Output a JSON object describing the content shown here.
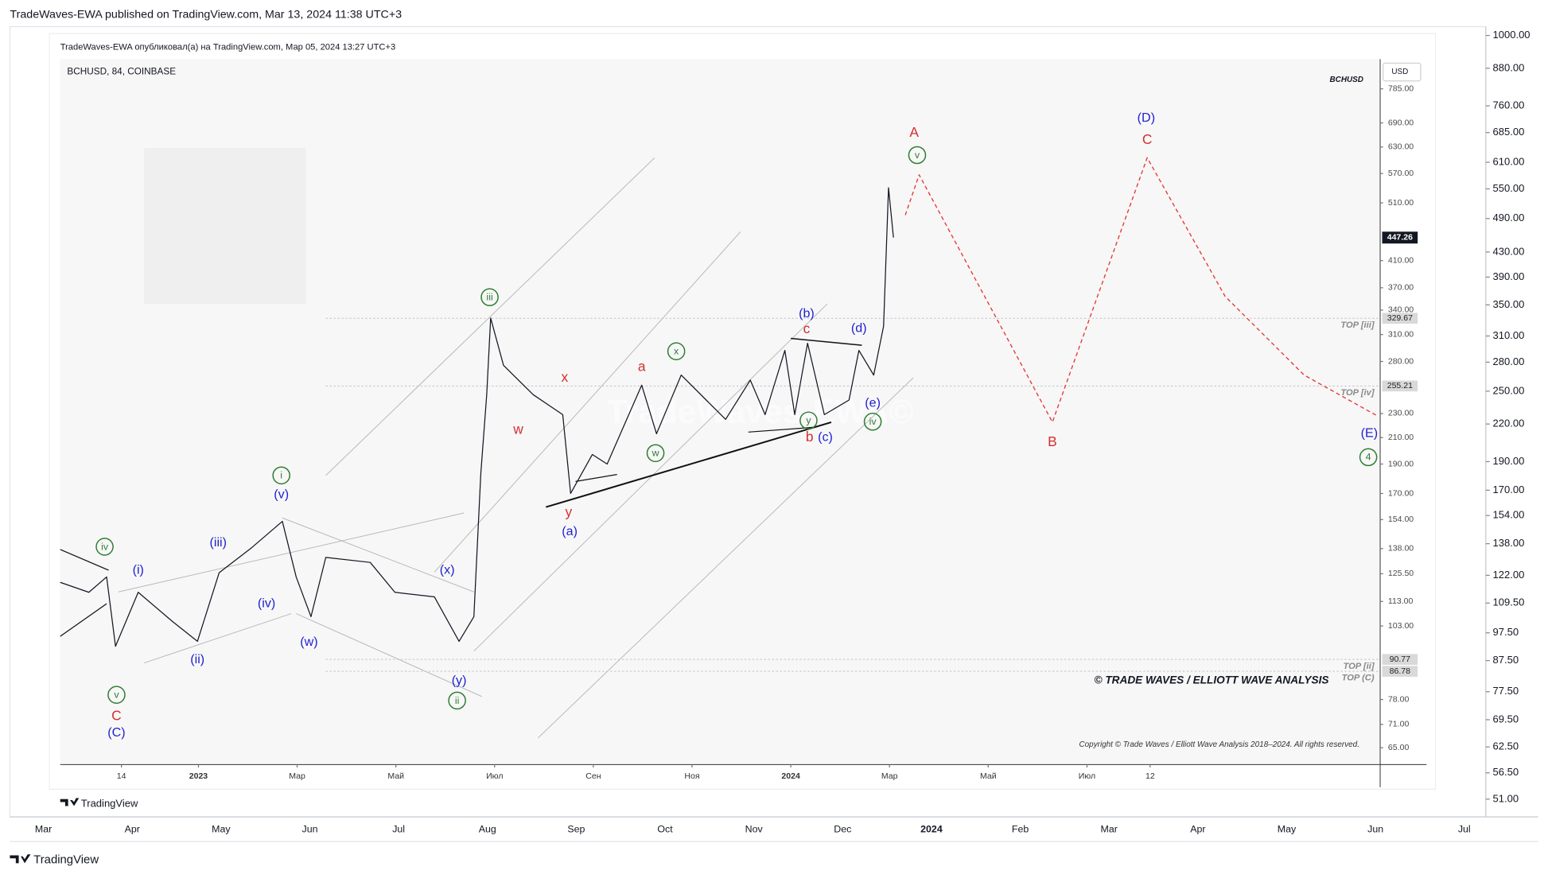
{
  "header": "TradeWaves-EWA published on TradingView.com, Mar 13, 2024 11:38 UTC+3",
  "footer_brand": "TradingView",
  "chart_data": {
    "type": "line",
    "inner_header": "TradeWaves-EWA опубликовал(а) на TradingView.com, Мар 05, 2024 13:27 UTC+3",
    "title": "BCHUSD, 84, COINBASE",
    "symbol": "BCHUSD",
    "currency": "USD",
    "watermark": "TradeWaves-EWA©",
    "copyright_banner": "© TRADE WAVES / ELLIOTT WAVE ANALYSIS",
    "copyright_note": "Copyright © Trade Waves / Elliott Wave Analysis 2018–2024. All rights reserved.",
    "brand": "TradingView",
    "y_scale": "log",
    "ylim": [
      47.6,
      1031
    ],
    "yticks": [
      {
        "value": 1000,
        "label": "1000.00"
      },
      {
        "value": 880,
        "label": "880.00"
      },
      {
        "value": 760,
        "label": "760.00"
      },
      {
        "value": 685,
        "label": "685.00"
      },
      {
        "value": 610,
        "label": "610.00"
      },
      {
        "value": 550,
        "label": "550.00"
      },
      {
        "value": 490,
        "label": "490.00"
      },
      {
        "value": 430,
        "label": "430.00"
      },
      {
        "value": 390,
        "label": "390.00"
      },
      {
        "value": 350,
        "label": "350.00"
      },
      {
        "value": 310,
        "label": "310.00"
      },
      {
        "value": 280,
        "label": "280.00"
      },
      {
        "value": 250,
        "label": "250.00"
      },
      {
        "value": 220,
        "label": "220.00"
      },
      {
        "value": 190,
        "label": "190.00"
      },
      {
        "value": 170,
        "label": "170.00"
      },
      {
        "value": 154,
        "label": "154.00"
      },
      {
        "value": 138,
        "label": "138.00"
      },
      {
        "value": 122,
        "label": "122.00"
      },
      {
        "value": 109.5,
        "label": "109.50"
      },
      {
        "value": 97.5,
        "label": "97.50"
      },
      {
        "value": 87.5,
        "label": "87.50"
      },
      {
        "value": 77.5,
        "label": "77.50"
      },
      {
        "value": 69.5,
        "label": "69.50"
      },
      {
        "value": 62.5,
        "label": "62.50"
      },
      {
        "value": 56.5,
        "label": "56.50"
      },
      {
        "value": 51,
        "label": "51.00"
      }
    ],
    "y2lim": [
      61,
      878
    ],
    "y2ticks": [
      {
        "value": 785,
        "label": "785.00"
      },
      {
        "value": 690,
        "label": "690.00"
      },
      {
        "value": 630,
        "label": "630.00"
      },
      {
        "value": 570,
        "label": "570.00"
      },
      {
        "value": 510,
        "label": "510.00"
      },
      {
        "value": 410,
        "label": "410.00"
      },
      {
        "value": 370,
        "label": "370.00"
      },
      {
        "value": 340,
        "label": "340.00"
      },
      {
        "value": 310,
        "label": "310.00"
      },
      {
        "value": 280,
        "label": "280.00"
      },
      {
        "value": 230,
        "label": "230.00"
      },
      {
        "value": 210,
        "label": "210.00"
      },
      {
        "value": 190,
        "label": "190.00"
      },
      {
        "value": 170,
        "label": "170.00"
      },
      {
        "value": 154,
        "label": "154.00"
      },
      {
        "value": 138,
        "label": "138.00"
      },
      {
        "value": 125.5,
        "label": "125.50"
      },
      {
        "value": 113,
        "label": "113.00"
      },
      {
        "value": 103,
        "label": "103.00"
      },
      {
        "value": 78,
        "label": "78.00"
      },
      {
        "value": 71,
        "label": "71.00"
      },
      {
        "value": 65,
        "label": "65.00"
      }
    ],
    "xlim": [
      -2.8,
      23.94
    ],
    "xticks": [
      {
        "value": -1.56,
        "label": "14"
      },
      {
        "value": 0,
        "label": "2023"
      },
      {
        "value": 2,
        "label": "Мар"
      },
      {
        "value": 4,
        "label": "Май"
      },
      {
        "value": 6,
        "label": "Июл"
      },
      {
        "value": 8,
        "label": "Сен"
      },
      {
        "value": 10,
        "label": "Ноя"
      },
      {
        "value": 12,
        "label": "2024"
      },
      {
        "value": 14,
        "label": "Мар"
      },
      {
        "value": 16,
        "label": "Май"
      },
      {
        "value": 18,
        "label": "Июл"
      },
      {
        "value": 19.28,
        "label": "12"
      }
    ],
    "x2_labels": [
      "Mar",
      "Apr",
      "May",
      "Jun",
      "Jul",
      "Aug",
      "Sep",
      "Oct",
      "Nov",
      "Dec",
      "2024",
      "Feb",
      "Mar",
      "Apr",
      "May",
      "Jun",
      "Jul"
    ],
    "last_price": 447.26,
    "series": [
      {
        "name": "BCHUSD",
        "color": "#131722",
        "axis": "y2",
        "x": [
          -2.8,
          -2.22,
          -1.86,
          -1.68,
          -1.22,
          -0.52,
          -0.02,
          0.42,
          1.08,
          1.7,
          1.98,
          2.28,
          2.58,
          3.48,
          3.98,
          4.78,
          5.28,
          5.58,
          5.72,
          5.84,
          5.92,
          6.18,
          6.78,
          7.38,
          7.54,
          7.98,
          8.28,
          8.98,
          9.28,
          9.78,
          10.68,
          11.18,
          11.48,
          11.88,
          12.08,
          12.34,
          12.68,
          13.18,
          13.38,
          13.68,
          13.88,
          13.98,
          14.08
        ],
        "values": [
          121.5,
          117,
          124,
          95.4,
          117,
          104.7,
          97.2,
          126,
          138.5,
          153,
          124,
          106.7,
          133.5,
          131,
          117,
          115,
          97.2,
          106.7,
          183,
          247,
          330,
          276,
          247,
          229,
          170,
          197,
          190,
          256,
          213,
          266,
          225,
          261,
          229,
          292,
          229,
          300,
          229,
          242,
          292,
          266,
          320,
          540,
          447.26
        ]
      },
      {
        "color": "#e53935",
        "dash": true,
        "axis": "y2",
        "x": [
          14.32,
          14.6,
          17.3,
          19.22,
          20.8,
          22.4,
          23.88
        ],
        "values": [
          487,
          567,
          222.6,
          605,
          358,
          266,
          228
        ]
      }
    ],
    "levels": [
      {
        "label": "TOP [iii]",
        "value": 329.67
      },
      {
        "label": "TOP [iv]",
        "value": 255.21
      },
      {
        "label": "TOP [ii]",
        "value": 90.77
      },
      {
        "label": "TOP (C)",
        "value": 86.78
      }
    ],
    "annotations": [
      {
        "text": "A",
        "x": 14.5,
        "y": 664,
        "color": "#d32f2f",
        "circled": false
      },
      {
        "text": "v",
        "x": 14.56,
        "y": 611,
        "color": "#2e7d32",
        "circled": true
      },
      {
        "text": "(D)",
        "x": 19.2,
        "y": 702,
        "color": "#1f1fd1",
        "circled": false
      },
      {
        "text": "C",
        "x": 19.22,
        "y": 646,
        "color": "#d32f2f",
        "circled": false
      },
      {
        "text": "B",
        "x": 17.3,
        "y": 206,
        "color": "#d32f2f",
        "circled": false
      },
      {
        "text": "(E)",
        "x": 23.72,
        "y": 213,
        "color": "#1f1fd1",
        "circled": false
      },
      {
        "text": "4",
        "x": 23.7,
        "y": 195,
        "color": "#2e7d32",
        "circled": true
      },
      {
        "text": "iii",
        "x": 5.9,
        "y": 357,
        "color": "#2e7d32",
        "circled": true
      },
      {
        "text": "(b)",
        "x": 12.32,
        "y": 335,
        "color": "#1f1fd1",
        "circled": false
      },
      {
        "text": "c",
        "x": 12.32,
        "y": 316,
        "color": "#d32f2f",
        "circled": false
      },
      {
        "text": "(d)",
        "x": 13.38,
        "y": 317,
        "color": "#1f1fd1",
        "circled": false
      },
      {
        "text": "(e)",
        "x": 13.66,
        "y": 239,
        "color": "#1f1fd1",
        "circled": false
      },
      {
        "text": "iv",
        "x": 13.66,
        "y": 223,
        "color": "#2e7d32",
        "circled": true
      },
      {
        "text": "x",
        "x": 9.68,
        "y": 291,
        "color": "#2e7d32",
        "circled": true
      },
      {
        "text": "w",
        "x": 9.26,
        "y": 198,
        "color": "#2e7d32",
        "circled": true
      },
      {
        "text": "y",
        "x": 12.36,
        "y": 224,
        "color": "#2e7d32",
        "circled": true
      },
      {
        "text": "b",
        "x": 12.38,
        "y": 210,
        "color": "#d32f2f",
        "circled": false
      },
      {
        "text": "(c)",
        "x": 12.7,
        "y": 210,
        "color": "#1f1fd1",
        "circled": false
      },
      {
        "text": "a",
        "x": 8.98,
        "y": 274,
        "color": "#d32f2f",
        "circled": false
      },
      {
        "text": "x",
        "x": 7.42,
        "y": 263,
        "color": "#d32f2f",
        "circled": false
      },
      {
        "text": "w",
        "x": 6.48,
        "y": 216,
        "color": "#d32f2f",
        "circled": false
      },
      {
        "text": "y",
        "x": 7.5,
        "y": 158,
        "color": "#d32f2f",
        "circled": false
      },
      {
        "text": "(a)",
        "x": 7.52,
        "y": 147,
        "color": "#1f1fd1",
        "circled": false
      },
      {
        "text": "i",
        "x": 1.68,
        "y": 182,
        "color": "#2e7d32",
        "circled": true
      },
      {
        "text": "(v)",
        "x": 1.68,
        "y": 169,
        "color": "#1f1fd1",
        "circled": false
      },
      {
        "text": "(iii)",
        "x": 0.4,
        "y": 141,
        "color": "#1f1fd1",
        "circled": false
      },
      {
        "text": "(i)",
        "x": -1.22,
        "y": 127,
        "color": "#1f1fd1",
        "circled": false
      },
      {
        "text": "iv",
        "x": -1.9,
        "y": 139,
        "color": "#2e7d32",
        "circled": true
      },
      {
        "text": "(iv)",
        "x": 1.38,
        "y": 112,
        "color": "#1f1fd1",
        "circled": false
      },
      {
        "text": "(ii)",
        "x": -0.02,
        "y": 90.6,
        "color": "#1f1fd1",
        "circled": false
      },
      {
        "text": "(w)",
        "x": 2.24,
        "y": 96.8,
        "color": "#1f1fd1",
        "circled": false
      },
      {
        "text": "(x)",
        "x": 5.04,
        "y": 127,
        "color": "#1f1fd1",
        "circled": false
      },
      {
        "text": "(y)",
        "x": 5.28,
        "y": 83.7,
        "color": "#1f1fd1",
        "circled": false
      },
      {
        "text": "ii",
        "x": 5.24,
        "y": 77.7,
        "color": "#2e7d32",
        "circled": true
      },
      {
        "text": "v",
        "x": -1.66,
        "y": 79.4,
        "color": "#2e7d32",
        "circled": true
      },
      {
        "text": "C",
        "x": -1.66,
        "y": 73.2,
        "color": "#d32f2f",
        "circled": false
      },
      {
        "text": "(C)",
        "x": -1.66,
        "y": 68.7,
        "color": "#1f1fd1",
        "circled": false
      }
    ]
  }
}
